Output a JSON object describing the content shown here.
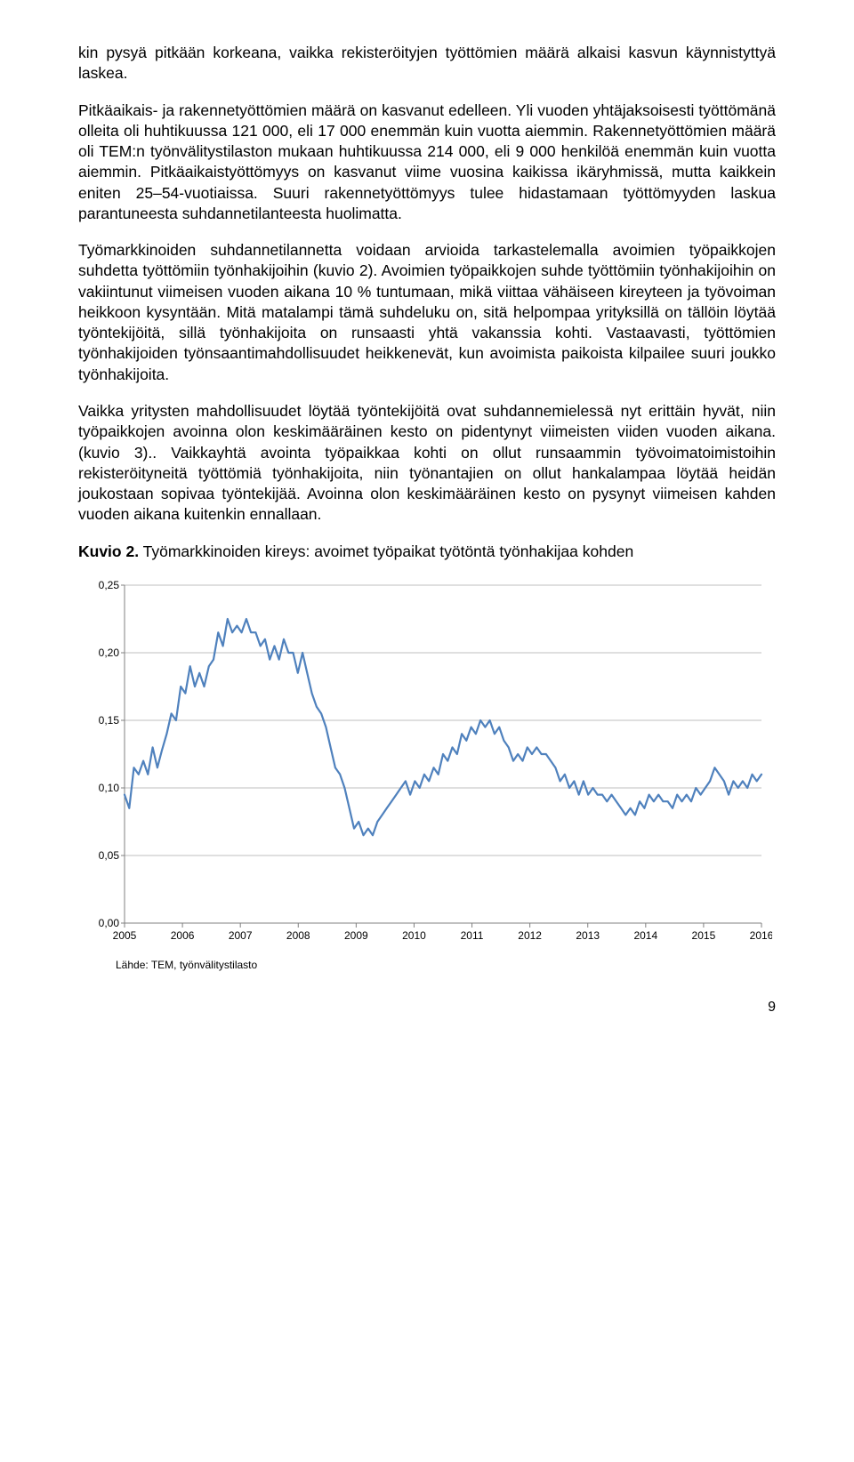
{
  "paragraphs": {
    "p1": "kin pysyä pitkään korkeana, vaikka rekisteröityjen työttömien määrä alkaisi kasvun käynnistyttyä laskea.",
    "p2": "Pitkäaikais- ja rakennetyöttömien määrä on kasvanut edelleen. Yli vuoden yhtäjaksoisesti työttömänä olleita oli huhtikuussa 121 000, eli 17 000 enemmän kuin vuotta aiemmin. Rakennetyöttömien määrä oli TEM:n työnvälitystilaston mukaan huhtikuussa 214 000, eli 9 000 henkilöä enemmän kuin vuotta aiemmin. Pitkäaikaistyöttömyys on kasvanut viime vuosina kaikissa ikäryhmissä, mutta kaikkein eniten 25–54-vuotiaissa. Suuri rakennetyöttömyys tulee hidastamaan työttömyyden laskua parantuneesta suhdannetilanteesta huolimatta.",
    "p3": "Työmarkkinoiden suhdannetilannetta voidaan arvioida tarkastelemalla avoimien työpaikkojen suhdetta työttömiin työnhakijoihin (kuvio 2). Avoimien työpaikkojen suhde työttömiin työnhakijoihin on vakiintunut viimeisen vuoden aikana 10 % tuntumaan, mikä viittaa vähäiseen kireyteen ja työvoiman heikkoon kysyntään. Mitä matalampi tämä suhdeluku on, sitä helpompaa yrityksillä on tällöin löytää työntekijöitä, sillä työnhakijoita on runsaasti yhtä vakanssia kohti. Vastaavasti, työttömien työnhakijoiden työnsaantimahdollisuudet heikkenevät, kun avoimista paikoista kilpailee suuri joukko työnhakijoita.",
    "p4": "Vaikka yritysten mahdollisuudet löytää työntekijöitä ovat suhdannemielessä nyt erittäin hyvät, niin työpaikkojen avoinna olon keskimääräinen kesto on pidentynyt viimeisten viiden vuoden aikana. (kuvio 3).. Vaikkayhtä avointa työpaikkaa kohti on ollut runsaammin työvoimatoimistoihin rekisteröityneitä työttömiä työnhakijoita, niin työnantajien on ollut hankalampaa löytää heidän joukostaan sopivaa työntekijää. Avoinna olon keskimääräinen kesto on pysynyt viimeisen kahden vuoden aikana kuitenkin ennallaan."
  },
  "figure": {
    "label": "Kuvio 2.",
    "caption": "Työmarkkinoiden kireys: avoimet työpaikat työtöntä työnhakijaa kohden",
    "source": "Lähde: TEM, työnvälitystilasto"
  },
  "chart": {
    "type": "line",
    "line_color": "#4f81bd",
    "line_width": 2.2,
    "background_color": "#ffffff",
    "grid_color": "#bfbfbf",
    "axis_color": "#808080",
    "tick_font_size": 12,
    "tick_color": "#000000",
    "ylim": [
      0,
      0.25
    ],
    "ytick_step": 0.05,
    "yticks": [
      "0,00",
      "0,05",
      "0,10",
      "0,15",
      "0,20",
      "0,25"
    ],
    "x_categories": [
      "2005",
      "2006",
      "2007",
      "2008",
      "2009",
      "2010",
      "2011",
      "2012",
      "2013",
      "2014",
      "2015",
      "2016"
    ],
    "values": [
      0.095,
      0.085,
      0.115,
      0.11,
      0.12,
      0.11,
      0.13,
      0.115,
      0.128,
      0.14,
      0.155,
      0.15,
      0.175,
      0.17,
      0.19,
      0.175,
      0.185,
      0.175,
      0.19,
      0.195,
      0.215,
      0.205,
      0.225,
      0.215,
      0.22,
      0.215,
      0.225,
      0.215,
      0.215,
      0.205,
      0.21,
      0.195,
      0.205,
      0.195,
      0.21,
      0.2,
      0.2,
      0.185,
      0.2,
      0.185,
      0.17,
      0.16,
      0.155,
      0.145,
      0.13,
      0.115,
      0.11,
      0.1,
      0.085,
      0.07,
      0.075,
      0.065,
      0.07,
      0.065,
      0.075,
      0.08,
      0.085,
      0.09,
      0.095,
      0.1,
      0.105,
      0.095,
      0.105,
      0.1,
      0.11,
      0.105,
      0.115,
      0.11,
      0.125,
      0.12,
      0.13,
      0.125,
      0.14,
      0.135,
      0.145,
      0.14,
      0.15,
      0.145,
      0.15,
      0.14,
      0.145,
      0.135,
      0.13,
      0.12,
      0.125,
      0.12,
      0.13,
      0.125,
      0.13,
      0.125,
      0.125,
      0.12,
      0.115,
      0.105,
      0.11,
      0.1,
      0.105,
      0.095,
      0.105,
      0.095,
      0.1,
      0.095,
      0.095,
      0.09,
      0.095,
      0.09,
      0.085,
      0.08,
      0.085,
      0.08,
      0.09,
      0.085,
      0.095,
      0.09,
      0.095,
      0.09,
      0.09,
      0.085,
      0.095,
      0.09,
      0.095,
      0.09,
      0.1,
      0.095,
      0.1,
      0.105,
      0.115,
      0.11,
      0.105,
      0.095,
      0.105,
      0.1,
      0.105,
      0.1,
      0.11,
      0.105,
      0.11
    ]
  },
  "page_number": "9"
}
